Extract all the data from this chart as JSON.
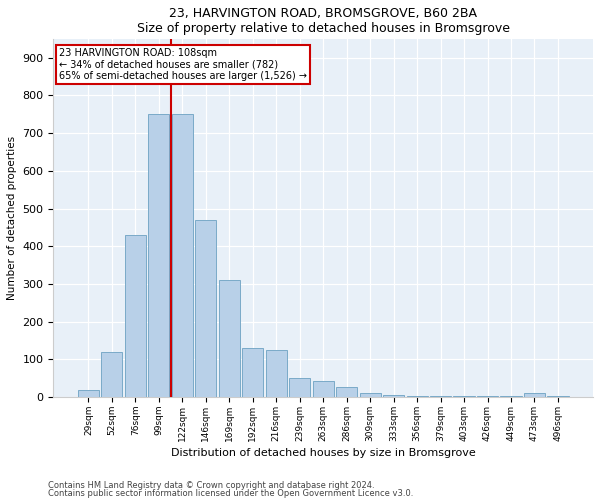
{
  "title1": "23, HARVINGTON ROAD, BROMSGROVE, B60 2BA",
  "title2": "Size of property relative to detached houses in Bromsgrove",
  "xlabel": "Distribution of detached houses by size in Bromsgrove",
  "ylabel": "Number of detached properties",
  "categories": [
    "29sqm",
    "52sqm",
    "76sqm",
    "99sqm",
    "122sqm",
    "146sqm",
    "169sqm",
    "192sqm",
    "216sqm",
    "239sqm",
    "263sqm",
    "286sqm",
    "309sqm",
    "333sqm",
    "356sqm",
    "379sqm",
    "403sqm",
    "426sqm",
    "449sqm",
    "473sqm",
    "496sqm"
  ],
  "values": [
    20,
    120,
    430,
    750,
    750,
    470,
    310,
    130,
    125,
    50,
    42,
    28,
    10,
    5,
    4,
    3,
    2,
    2,
    2,
    10,
    2
  ],
  "bar_color": "#b8d0e8",
  "bar_edge_color": "#7aaac8",
  "property_line_label": "23 HARVINGTON ROAD: 108sqm",
  "annotation_line1": "← 34% of detached houses are smaller (782)",
  "annotation_line2": "65% of semi-detached houses are larger (1,526) →",
  "annotation_box_color": "#cc0000",
  "ylim": [
    0,
    950
  ],
  "yticks": [
    0,
    100,
    200,
    300,
    400,
    500,
    600,
    700,
    800,
    900
  ],
  "footer1": "Contains HM Land Registry data © Crown copyright and database right 2024.",
  "footer2": "Contains public sector information licensed under the Open Government Licence v3.0.",
  "plot_bg_color": "#e8f0f8"
}
